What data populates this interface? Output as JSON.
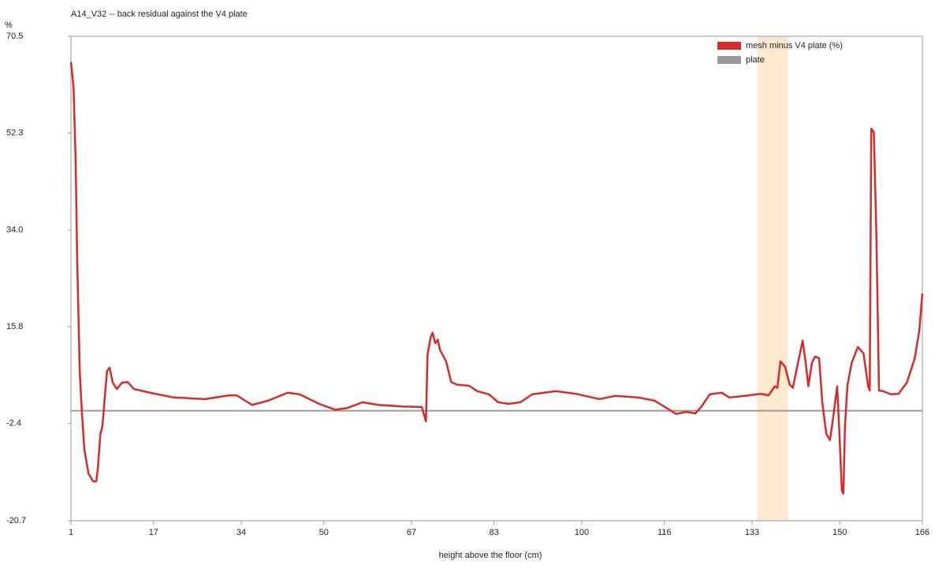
{
  "chart_data": {
    "type": "line",
    "title": "A14_V32 -- back residual against the V4 plate",
    "y_unit": "%",
    "x_label": "height above the floor (cm)",
    "x": [
      1,
      1.5,
      1.9,
      2.2,
      2.7,
      3.1,
      3.6,
      4.4,
      5.3,
      5.9,
      6.2,
      6.7,
      7.1,
      7.6,
      8.0,
      8.5,
      9.1,
      9.9,
      10.9,
      12.0,
      13.2,
      16.3,
      20.9,
      27.0,
      31.6,
      33.1,
      36.1,
      39.2,
      43.0,
      45.3,
      49.1,
      52.2,
      54.5,
      57.5,
      60.6,
      65.2,
      69.0,
      69.8,
      70.1,
      70.7,
      71.1,
      71.6,
      72.1,
      72.5,
      73.7,
      74.7,
      75.9,
      78.2,
      79.7,
      82.0,
      83.8,
      85.8,
      88.1,
      90.4,
      95.0,
      98.8,
      103.4,
      106.4,
      111.0,
      114.1,
      118.3,
      120.2,
      122.0,
      123.2,
      124.8,
      127.1,
      128.6,
      131.6,
      134.7,
      136.2,
      137.4,
      137.9,
      138.5,
      139.4,
      140.3,
      140.9,
      141.9,
      142.8,
      143.4,
      143.9,
      144.6,
      145.2,
      146.0,
      146.6,
      147.4,
      148.1,
      148.7,
      149.5,
      150.0,
      150.4,
      150.7,
      151.0,
      151.5,
      152.3,
      153.5,
      154.6,
      155.5,
      155.8,
      156.1,
      156.6,
      157.1,
      157.6,
      158.4,
      159.9,
      161.4,
      163.0,
      164.5,
      165.4,
      166.0
    ],
    "series": [
      {
        "name": "mesh minus V4 plate (%)",
        "color": "#d62b2b",
        "values": [
          65.7,
          61,
          47.6,
          29,
          7.5,
          0.1,
          -7.3,
          -11.8,
          -13.3,
          -13.3,
          -11.0,
          -4.4,
          -2.9,
          3.1,
          7.5,
          8.1,
          5.3,
          4.1,
          5.3,
          5.4,
          4.1,
          3.4,
          2.5,
          2.2,
          2.9,
          2.9,
          1.1,
          1.9,
          3.4,
          3.1,
          1.3,
          0.2,
          0.5,
          1.6,
          1.1,
          0.8,
          0.7,
          -2.0,
          10.5,
          13.8,
          14.7,
          12.7,
          13.4,
          11.5,
          9.3,
          5.4,
          4.9,
          4.7,
          3.7,
          3.1,
          1.6,
          1.3,
          1.6,
          3.1,
          3.7,
          3.2,
          2.2,
          2.8,
          2.5,
          1.9,
          -0.6,
          -0.2,
          -0.5,
          0.8,
          3.1,
          3.4,
          2.5,
          2.8,
          3.2,
          2.9,
          4.6,
          4.3,
          9.3,
          8.3,
          4.9,
          4.3,
          9.0,
          13.2,
          9.0,
          4.6,
          9.0,
          10.2,
          9.9,
          1.6,
          -4.4,
          -5.5,
          -1.4,
          4.6,
          -5.8,
          -15.0,
          -15.6,
          -2.9,
          4.9,
          9.0,
          12.0,
          10.8,
          4.6,
          3.8,
          53.1,
          52.4,
          32.8,
          3.8,
          3.7,
          3.1,
          3.2,
          5.3,
          9.8,
          15.0,
          22.1
        ]
      }
    ],
    "reference": {
      "name": "plate",
      "value": 0,
      "color": "#999999"
    },
    "highlight_x": [
      134,
      140
    ],
    "highlight_color": "#fde9d2",
    "xlim": [
      1,
      166
    ],
    "xticks": [
      1,
      17,
      34,
      50,
      67,
      83,
      100,
      116,
      133,
      150,
      166
    ],
    "ylim": [
      -20.7,
      70.5
    ],
    "yticks": [
      -20.7,
      -2.4,
      15.8,
      {
        "value": 34,
        "label": "34.0"
      },
      52.3,
      70.5
    ],
    "grid": false,
    "legend": "top-right"
  }
}
